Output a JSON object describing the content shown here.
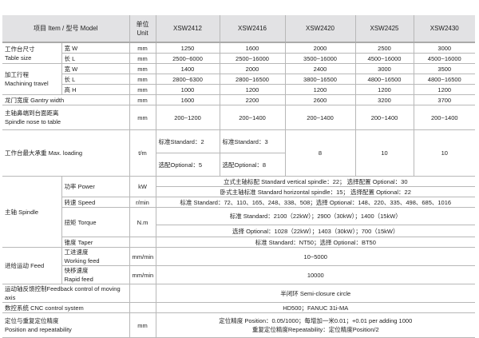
{
  "header": {
    "item": "项目 Item / 型号 Model",
    "unit_cn": "单位",
    "unit_en": "Unit",
    "models": [
      "XSW2412",
      "XSW2416",
      "XSW2420",
      "XSW2425",
      "XSW2430"
    ]
  },
  "table_size": {
    "label_cn": "工作台尺寸",
    "label_en": "Table size",
    "width": {
      "label": "宽 W",
      "unit": "mm",
      "values": [
        "1250",
        "1600",
        "2000",
        "2500",
        "3000"
      ]
    },
    "length": {
      "label": "长 L",
      "unit": "mm",
      "values": [
        "2500~6000",
        "2500~16000",
        "3500~16000",
        "4500~16000",
        "4500~16000"
      ]
    }
  },
  "travel": {
    "label_cn": "加工行程",
    "label_en": "Machining travel",
    "width": {
      "label": "宽 W",
      "unit": "mm",
      "values": [
        "1400",
        "2000",
        "2400",
        "3000",
        "3500"
      ]
    },
    "length": {
      "label": "长 L",
      "unit": "mm",
      "values": [
        "2800~6300",
        "2800~16500",
        "3800~16500",
        "4800~16500",
        "4800~16500"
      ]
    },
    "height": {
      "label": "高 H",
      "unit": "mm",
      "values": [
        "1000",
        "1200",
        "1200",
        "1200",
        "1200"
      ]
    }
  },
  "gantry": {
    "label": "龙门宽度 Gantry width",
    "unit": "mm",
    "values": [
      "1600",
      "2200",
      "2600",
      "3200",
      "3700"
    ]
  },
  "nose": {
    "label_cn": "主轴鼻端到台面距离",
    "label_en": "Spindle nose to table",
    "unit": "mm",
    "values": [
      "200~1200",
      "200~1400",
      "200~1400",
      "200~1400",
      "200~1400"
    ]
  },
  "loading": {
    "label": "工作台最大承重 Max. loading",
    "unit": "t/m",
    "std": [
      "标准Standard：2",
      "标准Standard：3"
    ],
    "opt": [
      "选配Optional：5",
      "选配Optional：8"
    ],
    "others": [
      "8",
      "10",
      "10"
    ]
  },
  "spindle": {
    "label": "主轴 Spindle",
    "power": {
      "label": "功率 Power",
      "unit": "kW",
      "vertical": "立式主轴标配 Standard vertical spindle：22；  选择配置 Optional：30",
      "horizontal": "卧式主轴标准 Standard horizontal spindle：15；   选择配置 Optional：22"
    },
    "speed": {
      "label": "转速 Speed",
      "unit": "r/min",
      "value": "标准 Standard：72、110、165、248、338、508；选择 Optional：148、220、335、498、685、1016"
    },
    "torque": {
      "label": "扭矩 Torque",
      "unit": "N.m",
      "std": "标准 Standard：2100（22kW）；2900（30kW）；1400（15kW）",
      "opt": "选择 Optional：1028（22kW）；1403（30kW）；700（15kW）"
    },
    "taper": {
      "label": "锥度 Taper",
      "value": "标准 Standard：NT50；选择 Optional：BT50"
    }
  },
  "feed": {
    "label": "进给运动 Feed",
    "working": {
      "label_cn": "工进速度",
      "label_en": "Working feed",
      "unit": "mm/min",
      "value": "10~5000"
    },
    "rapid": {
      "label_cn": "快移速度",
      "label_en": "Rapid feed",
      "unit": "mm/min",
      "value": "10000"
    }
  },
  "feedback": {
    "label": "运动轴反馈控制Feedback control of moving axis",
    "value": "半闭环 Semi-closure circle"
  },
  "cnc": {
    "label": "数控系统 CNC control system",
    "value": "HD500；FANUC 31i-MA"
  },
  "position": {
    "label_cn": "定位与重复定位精度",
    "label_en": "Position and repeatability",
    "unit": "mm",
    "line1": "定位精度 Position：0.05/1000；每增加一米0.01；+0.01 per adding 1000",
    "line2": "重复定位精度Repeatability：定位精度Position/2"
  }
}
